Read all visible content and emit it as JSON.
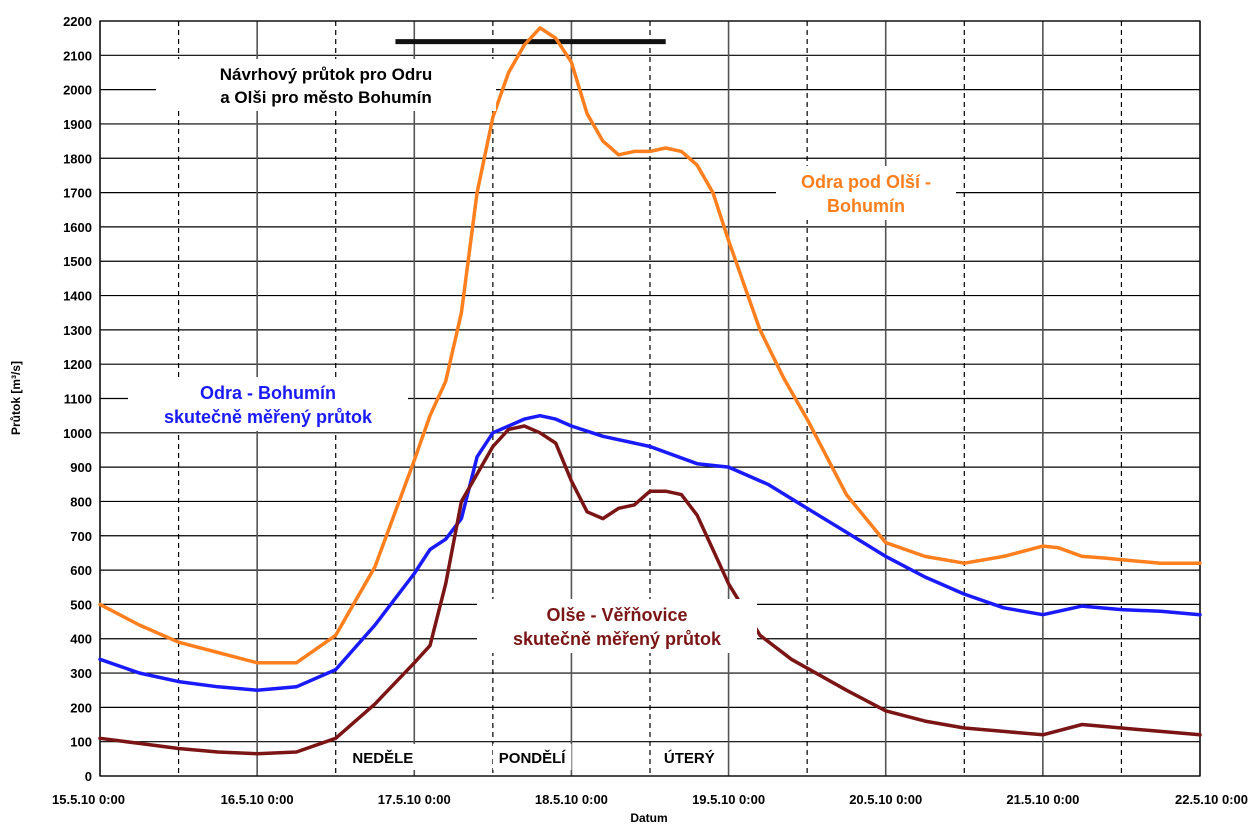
{
  "chart_data": {
    "type": "line",
    "xlabel": "Datum",
    "ylabel": "Průtok [m³/s]",
    "ylim": [
      0,
      2200
    ],
    "ytick_step": 100,
    "xlim": [
      "15.5.10 0:00",
      "22.5.10 0:00"
    ],
    "x_tick_labels": [
      "15.5.10 0:00",
      "16.5.10 0:00",
      "17.5.10 0:00",
      "18.5.10 0:00",
      "19.5.10 0:00",
      "20.5.10 0:00",
      "21.5.10 0:00",
      "22.5.10 0:00"
    ],
    "grid": true,
    "day_labels": [
      {
        "text": "NEDĚLE",
        "day": 1.8
      },
      {
        "text": "PONDĚLÍ",
        "day": 2.75
      },
      {
        "text": "ÚTERÝ",
        "day": 3.75
      }
    ],
    "design_flow": {
      "value": 2140,
      "x_start_day": 1.88,
      "x_end_day": 3.6,
      "label_lines": [
        "Návrhový průtok pro Odru",
        "a Olši pro město Bohumín"
      ]
    },
    "series": [
      {
        "name": "Odra pod Olší - Bohumín",
        "label_lines": [
          "Odra pod Olší -",
          "Bohumín"
        ],
        "color": "#ff7f1f",
        "x": [
          0,
          0.25,
          0.5,
          0.75,
          1.0,
          1.25,
          1.5,
          1.75,
          2.0,
          2.1,
          2.2,
          2.3,
          2.4,
          2.5,
          2.6,
          2.7,
          2.8,
          2.9,
          3.0,
          3.1,
          3.2,
          3.3,
          3.4,
          3.5,
          3.6,
          3.7,
          3.8,
          3.9,
          4.0,
          4.1,
          4.2,
          4.35,
          4.5,
          4.75,
          5.0,
          5.25,
          5.5,
          5.75,
          6.0,
          6.1,
          6.25,
          6.4,
          6.5,
          6.75,
          7.0
        ],
        "y": [
          500,
          440,
          390,
          360,
          330,
          330,
          410,
          610,
          920,
          1050,
          1150,
          1350,
          1700,
          1920,
          2050,
          2130,
          2180,
          2150,
          2080,
          1930,
          1850,
          1810,
          1820,
          1820,
          1830,
          1820,
          1780,
          1700,
          1560,
          1430,
          1300,
          1160,
          1040,
          820,
          680,
          640,
          620,
          640,
          670,
          665,
          640,
          635,
          630,
          620,
          620
        ]
      },
      {
        "name": "Odra - Bohumín",
        "label_lines": [
          "Odra - Bohumín",
          "skutečně měřený průtok"
        ],
        "color": "#1a1aff",
        "x": [
          0,
          0.25,
          0.5,
          0.75,
          1.0,
          1.25,
          1.5,
          1.75,
          2.0,
          2.1,
          2.2,
          2.3,
          2.4,
          2.5,
          2.6,
          2.7,
          2.8,
          2.9,
          3.0,
          3.2,
          3.5,
          3.8,
          4.0,
          4.25,
          4.5,
          4.75,
          5.0,
          5.25,
          5.5,
          5.75,
          6.0,
          6.25,
          6.5,
          6.75,
          7.0
        ],
        "y": [
          340,
          300,
          275,
          260,
          250,
          260,
          310,
          440,
          590,
          660,
          690,
          750,
          930,
          1000,
          1020,
          1040,
          1050,
          1040,
          1020,
          990,
          960,
          910,
          900,
          850,
          780,
          710,
          640,
          580,
          530,
          490,
          470,
          495,
          485,
          480,
          470
        ]
      },
      {
        "name": "Olše - Věřňovice",
        "label_lines": [
          "Olše - Věřňovice",
          "skutečně měřený průtok"
        ],
        "color": "#7b1515",
        "x": [
          0,
          0.25,
          0.5,
          0.75,
          1.0,
          1.25,
          1.5,
          1.75,
          2.0,
          2.1,
          2.2,
          2.3,
          2.4,
          2.5,
          2.6,
          2.7,
          2.8,
          2.9,
          3.0,
          3.1,
          3.2,
          3.3,
          3.4,
          3.5,
          3.6,
          3.7,
          3.8,
          3.9,
          4.0,
          4.2,
          4.4,
          4.75,
          5.0,
          5.25,
          5.5,
          5.75,
          6.0,
          6.25,
          6.5,
          6.75,
          7.0
        ],
        "y": [
          110,
          95,
          80,
          70,
          65,
          70,
          110,
          210,
          330,
          380,
          560,
          800,
          880,
          960,
          1010,
          1020,
          1000,
          970,
          860,
          770,
          750,
          780,
          790,
          830,
          830,
          820,
          760,
          660,
          560,
          410,
          340,
          250,
          190,
          160,
          140,
          130,
          120,
          150,
          140,
          130,
          120
        ]
      }
    ]
  }
}
